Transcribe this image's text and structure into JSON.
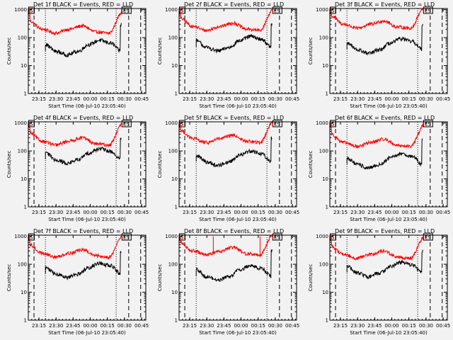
{
  "colors": {
    "background": "#f2f2f2",
    "events": "#000000",
    "lld": "#ff0000",
    "axis": "#000000"
  },
  "chart_data": [
    {
      "type": "line",
      "detector": "Det 1f",
      "title": "Det 1f BLACK = Events, RED = LLD"
    },
    {
      "type": "line",
      "detector": "Det 2f",
      "title": "Det 2f BLACK = Events, RED = LLD"
    },
    {
      "type": "line",
      "detector": "Det 3f",
      "title": "Det 3f BLACK = Events, RED = LLD"
    },
    {
      "type": "line",
      "detector": "Det 4f",
      "title": "Det 4f BLACK = Events, RED = LLD"
    },
    {
      "type": "line",
      "detector": "Det 5f",
      "title": "Det 5f BLACK = Events, RED = LLD"
    },
    {
      "type": "line",
      "detector": "Det 6f",
      "title": "Det 6f BLACK = Events, RED = LLD"
    },
    {
      "type": "line",
      "detector": "Det 7f",
      "title": "Det 7f BLACK = Events, RED = LLD"
    },
    {
      "type": "line",
      "detector": "Det 8f",
      "title": "Det 8f BLACK = Events, RED = LLD",
      "spikes_red_min": [
        30,
        71
      ]
    },
    {
      "type": "line",
      "detector": "Det 9f",
      "title": "Det 9f BLACK = Events, RED = LLD"
    }
  ],
  "shared": {
    "xlabel": "Start Time (06-Jul-10 23:05:40)",
    "ylabel": "Counts/sec",
    "x_tick_labels": [
      "23:15",
      "23:30",
      "23:45",
      "00:00",
      "00:15",
      "00:30",
      "00:45"
    ],
    "x_tick_minutes": [
      9.33,
      24.33,
      39.33,
      54.33,
      69.33,
      84.33,
      99.33
    ],
    "xlim_minutes": [
      0,
      103
    ],
    "y_tick_labels": [
      "1",
      "10",
      "100",
      "1000"
    ],
    "y_tick_values": [
      1,
      10,
      100,
      1000
    ],
    "ylim": [
      1,
      1100
    ],
    "marker_left": "S",
    "marker_right": "ES",
    "dashed_lines_minutes": [
      5,
      88,
      98.5
    ],
    "dotted_lines_minutes": [
      15,
      77
    ],
    "events_start_minutes": 15,
    "events_end_minutes": 81.5,
    "lld_end_minutes": 82.5,
    "events_level_counts": [
      70,
      40,
      30,
      40,
      70,
      100,
      80,
      40
    ],
    "lld_level_counts": [
      500,
      250,
      180,
      250,
      330,
      200,
      180,
      1000
    ]
  }
}
